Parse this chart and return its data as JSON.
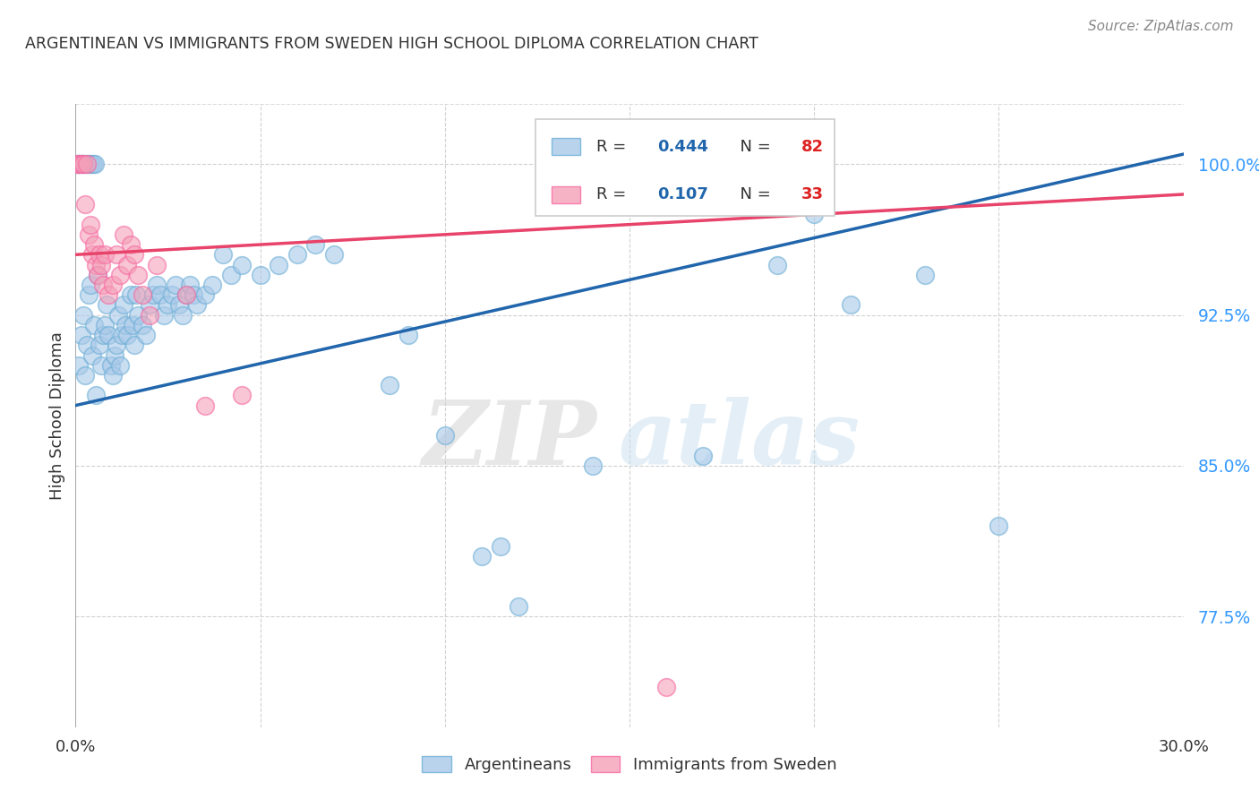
{
  "title": "ARGENTINEAN VS IMMIGRANTS FROM SWEDEN HIGH SCHOOL DIPLOMA CORRELATION CHART",
  "source": "Source: ZipAtlas.com",
  "ylabel": "High School Diploma",
  "yticks": [
    100.0,
    92.5,
    85.0,
    77.5
  ],
  "ytick_labels": [
    "100.0%",
    "92.5%",
    "85.0%",
    "77.5%"
  ],
  "blue_color": "#a8c8e8",
  "pink_color": "#f4a0b8",
  "blue_edge_color": "#6baed6",
  "pink_edge_color": "#f768a1",
  "blue_line_color": "#2166ac",
  "pink_line_color": "#e8436a",
  "blue_scatter_x": [
    0.1,
    0.15,
    0.2,
    0.25,
    0.3,
    0.35,
    0.4,
    0.45,
    0.5,
    0.55,
    0.6,
    0.65,
    0.7,
    0.75,
    0.8,
    0.85,
    0.9,
    0.95,
    1.0,
    1.05,
    1.1,
    1.15,
    1.2,
    1.25,
    1.3,
    1.35,
    1.4,
    1.5,
    1.55,
    1.6,
    1.65,
    1.7,
    1.8,
    1.9,
    2.0,
    2.1,
    2.2,
    2.3,
    2.4,
    2.5,
    2.6,
    2.7,
    2.8,
    2.9,
    3.0,
    3.1,
    3.2,
    3.3,
    3.5,
    3.7,
    4.0,
    4.2,
    4.5,
    5.0,
    5.5,
    6.0,
    6.5,
    7.0,
    8.5,
    9.0,
    10.0,
    11.0,
    11.5,
    12.0,
    14.0,
    17.0,
    19.0,
    20.0,
    21.0,
    23.0,
    25.0,
    0.05,
    0.08,
    0.12,
    0.18,
    0.22,
    0.28,
    0.32,
    0.38,
    0.42,
    0.48,
    0.52
  ],
  "blue_scatter_y": [
    90.0,
    91.5,
    92.5,
    89.5,
    91.0,
    93.5,
    94.0,
    90.5,
    92.0,
    88.5,
    94.5,
    91.0,
    90.0,
    91.5,
    92.0,
    93.0,
    91.5,
    90.0,
    89.5,
    90.5,
    91.0,
    92.5,
    90.0,
    91.5,
    93.0,
    92.0,
    91.5,
    93.5,
    92.0,
    91.0,
    93.5,
    92.5,
    92.0,
    91.5,
    93.0,
    93.5,
    94.0,
    93.5,
    92.5,
    93.0,
    93.5,
    94.0,
    93.0,
    92.5,
    93.5,
    94.0,
    93.5,
    93.0,
    93.5,
    94.0,
    95.5,
    94.5,
    95.0,
    94.5,
    95.0,
    95.5,
    96.0,
    95.5,
    89.0,
    91.5,
    86.5,
    80.5,
    81.0,
    78.0,
    85.0,
    85.5,
    95.0,
    97.5,
    93.0,
    94.5,
    82.0,
    100.0,
    100.0,
    100.0,
    100.0,
    100.0,
    100.0,
    100.0,
    100.0,
    100.0,
    100.0,
    100.0
  ],
  "pink_scatter_x": [
    0.05,
    0.1,
    0.15,
    0.2,
    0.25,
    0.3,
    0.35,
    0.4,
    0.45,
    0.5,
    0.55,
    0.6,
    0.65,
    0.7,
    0.75,
    0.8,
    0.9,
    1.0,
    1.1,
    1.2,
    1.3,
    1.4,
    1.5,
    1.6,
    1.7,
    1.8,
    2.0,
    2.2,
    3.0,
    3.5,
    4.5,
    15.0,
    16.0
  ],
  "pink_scatter_y": [
    100.0,
    100.0,
    100.0,
    100.0,
    98.0,
    100.0,
    96.5,
    97.0,
    95.5,
    96.0,
    95.0,
    94.5,
    95.5,
    95.0,
    94.0,
    95.5,
    93.5,
    94.0,
    95.5,
    94.5,
    96.5,
    95.0,
    96.0,
    95.5,
    94.5,
    93.5,
    92.5,
    95.0,
    93.5,
    88.0,
    88.5,
    100.0,
    74.0
  ],
  "xmin": 0.0,
  "xmax": 30.0,
  "ymin": 72.0,
  "ymax": 103.0,
  "watermark_zip": "ZIP",
  "watermark_atlas": "atlas",
  "background_color": "#ffffff"
}
